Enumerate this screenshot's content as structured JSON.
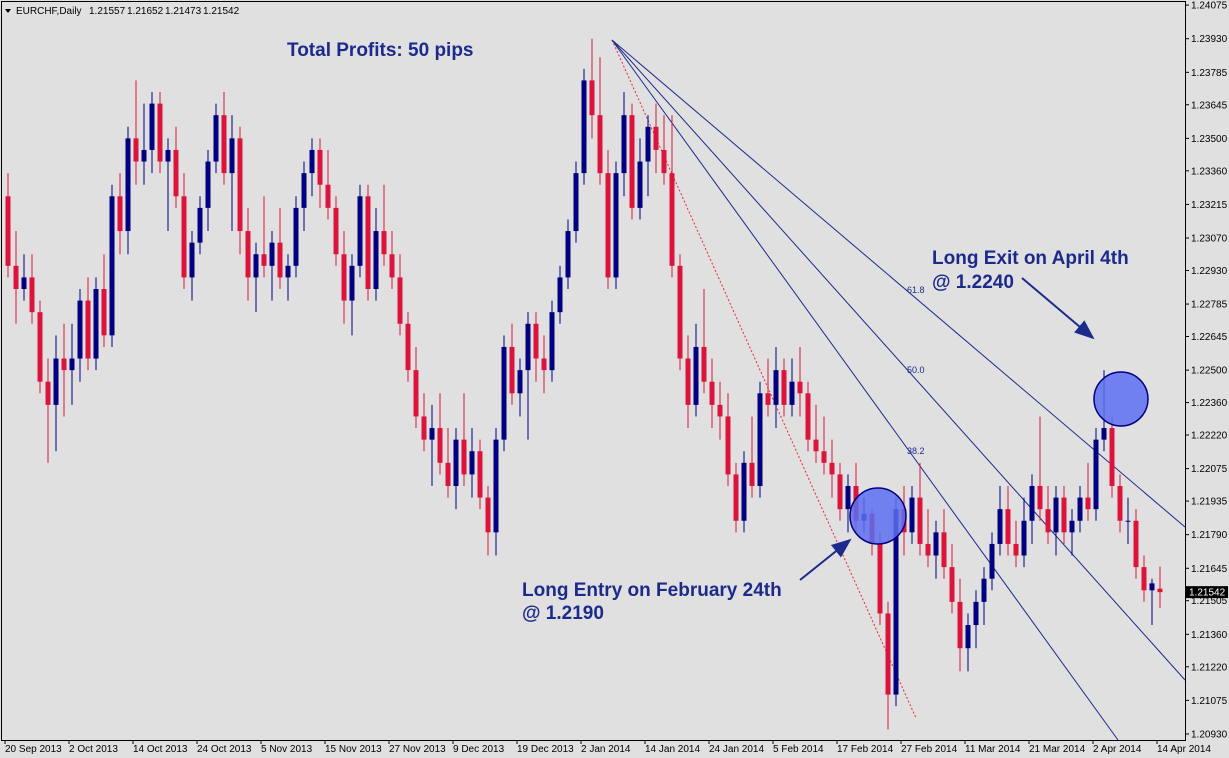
{
  "chart_data": {
    "type": "candlestick",
    "title": "EURCHF,Daily",
    "up_color": "#000080",
    "down_color": "#dc143c",
    "categories": [
      "20 Sep 2013",
      null,
      null,
      null,
      null,
      null,
      null,
      null,
      "2 Oct 2013",
      null,
      null,
      null,
      null,
      null,
      null,
      null,
      "14 Oct 2013",
      null,
      null,
      null,
      null,
      null,
      null,
      null,
      "24 Oct 2013",
      null,
      null,
      null,
      null,
      null,
      null,
      null,
      "5 Nov 2013",
      null,
      null,
      null,
      null,
      null,
      null,
      null,
      "15 Nov 2013",
      null,
      null,
      null,
      null,
      null,
      null,
      null,
      "27 Nov 2013",
      null,
      null,
      null,
      null,
      null,
      null,
      null,
      "9 Dec 2013",
      null,
      null,
      null,
      null,
      null,
      null,
      null,
      "19 Dec 2013",
      null,
      null,
      null,
      null,
      null,
      null,
      null,
      "2 Jan 2014",
      null,
      null,
      null,
      null,
      null,
      null,
      null,
      "14 Jan 2014",
      null,
      null,
      null,
      null,
      null,
      null,
      null,
      "24 Jan 2014",
      null,
      null,
      null,
      null,
      null,
      null,
      null,
      "5 Feb 2014",
      null,
      null,
      null,
      null,
      null,
      null,
      null,
      "17 Feb 2014",
      null,
      null,
      null,
      null,
      null,
      null,
      null,
      "27 Feb 2014",
      null,
      null,
      null,
      null,
      null,
      null,
      null,
      "11 Mar 2014",
      null,
      null,
      null,
      null,
      null,
      null,
      null,
      "21 Mar 2014",
      null,
      null,
      null,
      null,
      null,
      null,
      null,
      "2 Apr 2014",
      null,
      null,
      null,
      null,
      null,
      null,
      null,
      "14 Apr 2014"
    ],
    "open": [
      1.2325,
      1.2295,
      1.2285,
      1.229,
      1.2275,
      1.2245,
      1.2235,
      1.2255,
      1.225,
      1.2255,
      1.228,
      1.2255,
      1.2285,
      1.2265,
      1.2325,
      1.231,
      1.235,
      1.234,
      1.2345,
      1.2365,
      1.234,
      1.2345,
      1.2325,
      1.229,
      1.2305,
      1.232,
      1.234,
      1.236,
      1.2335,
      1.235,
      1.231,
      1.229,
      1.23,
      1.2295,
      1.2305,
      1.229,
      1.2295,
      1.232,
      1.2335,
      1.2345,
      1.233,
      1.232,
      1.23,
      1.228,
      1.2295,
      1.2325,
      1.2285,
      1.231,
      1.23,
      1.229,
      1.227,
      1.225,
      1.223,
      1.222,
      1.2225,
      1.221,
      1.22,
      1.222,
      1.2205,
      1.2215,
      1.2195,
      1.218,
      1.222,
      1.226,
      1.224,
      1.225,
      1.227,
      1.2255,
      1.225,
      1.2275,
      1.229,
      1.231,
      1.2335,
      1.2375,
      1.236,
      1.2335,
      1.229,
      1.2335,
      1.236,
      1.232,
      1.234,
      1.2355,
      1.2345,
      1.2335,
      1.2295,
      1.2255,
      1.2235,
      1.226,
      1.2245,
      1.2235,
      1.223,
      1.2205,
      1.2185,
      1.221,
      1.22,
      1.224,
      1.2235,
      1.225,
      1.2235,
      1.2245,
      1.224,
      1.222,
      1.2215,
      1.221,
      1.2205,
      1.219,
      1.22,
      1.2185,
      1.2188,
      1.2175,
      1.2145,
      1.211,
      1.219,
      1.218,
      1.2195,
      1.2175,
      1.217,
      1.218,
      1.2165,
      1.215,
      1.213,
      1.214,
      1.215,
      1.216,
      1.2175,
      1.219,
      1.2175,
      1.217,
      1.2185,
      1.22,
      1.219,
      1.218,
      1.2195,
      1.218,
      1.2185,
      1.2195,
      1.219,
      1.222,
      1.2225,
      1.22,
      1.2185,
      1.2185,
      1.2165,
      1.2155,
      1.21557
    ],
    "high": [
      1.2335,
      1.231,
      1.23,
      1.23,
      1.228,
      1.2255,
      1.2265,
      1.227,
      1.227,
      1.2285,
      1.229,
      1.229,
      1.23,
      1.233,
      1.2335,
      1.2355,
      1.2375,
      1.2365,
      1.237,
      1.237,
      1.235,
      1.2355,
      1.2335,
      1.231,
      1.2325,
      1.2345,
      1.2365,
      1.237,
      1.236,
      1.2355,
      1.232,
      1.2305,
      1.2325,
      1.231,
      1.232,
      1.23,
      1.2325,
      1.234,
      1.235,
      1.235,
      1.2345,
      1.2325,
      1.231,
      1.23,
      1.233,
      1.233,
      1.232,
      1.233,
      1.231,
      1.23,
      1.2275,
      1.226,
      1.224,
      1.2235,
      1.224,
      1.2225,
      1.2225,
      1.224,
      1.2225,
      1.222,
      1.22,
      1.2225,
      1.2265,
      1.227,
      1.2255,
      1.2275,
      1.2275,
      1.2265,
      1.228,
      1.2295,
      1.2315,
      1.234,
      1.238,
      1.2393,
      1.2385,
      1.2345,
      1.234,
      1.237,
      1.2365,
      1.235,
      1.236,
      1.2365,
      1.236,
      1.236,
      1.23,
      1.2265,
      1.227,
      1.2285,
      1.2255,
      1.2245,
      1.224,
      1.221,
      1.2215,
      1.223,
      1.2245,
      1.2255,
      1.226,
      1.2255,
      1.2255,
      1.226,
      1.2245,
      1.2235,
      1.223,
      1.222,
      1.221,
      1.2205,
      1.221,
      1.2195,
      1.219,
      1.218,
      1.215,
      1.2195,
      1.22,
      1.22,
      1.221,
      1.219,
      1.2185,
      1.219,
      1.2175,
      1.216,
      1.2145,
      1.2155,
      1.2165,
      1.218,
      1.22,
      1.22,
      1.2185,
      1.2195,
      1.2205,
      1.223,
      1.22,
      1.22,
      1.22,
      1.219,
      1.22,
      1.221,
      1.2225,
      1.225,
      1.223,
      1.2205,
      1.2195,
      1.219,
      1.217,
      1.216,
      1.21652
    ],
    "low": [
      1.229,
      1.227,
      1.228,
      1.227,
      1.224,
      1.221,
      1.2215,
      1.223,
      1.2235,
      1.2245,
      1.225,
      1.225,
      1.226,
      1.226,
      1.23,
      1.23,
      1.233,
      1.233,
      1.2335,
      1.2335,
      1.231,
      1.232,
      1.2285,
      1.228,
      1.23,
      1.231,
      1.2335,
      1.233,
      1.231,
      1.23,
      1.228,
      1.2275,
      1.229,
      1.228,
      1.2285,
      1.228,
      1.229,
      1.231,
      1.2325,
      1.232,
      1.2315,
      1.2295,
      1.227,
      1.2265,
      1.229,
      1.228,
      1.228,
      1.2295,
      1.2285,
      1.2265,
      1.2245,
      1.2225,
      1.2215,
      1.22,
      1.2205,
      1.2195,
      1.219,
      1.22,
      1.2195,
      1.219,
      1.217,
      1.217,
      1.2215,
      1.2235,
      1.223,
      1.222,
      1.2245,
      1.224,
      1.2245,
      1.227,
      1.2285,
      1.2305,
      1.233,
      1.235,
      1.233,
      1.2285,
      1.2285,
      1.2325,
      1.2315,
      1.2315,
      1.2325,
      1.2335,
      1.233,
      1.229,
      1.225,
      1.2225,
      1.223,
      1.224,
      1.2225,
      1.222,
      1.22,
      1.218,
      1.218,
      1.2195,
      1.2195,
      1.223,
      1.2225,
      1.223,
      1.223,
      1.223,
      1.2215,
      1.221,
      1.2205,
      1.2195,
      1.2185,
      1.218,
      1.218,
      1.218,
      1.217,
      1.214,
      1.2095,
      1.2105,
      1.217,
      1.2175,
      1.217,
      1.2165,
      1.216,
      1.216,
      1.2145,
      1.212,
      1.212,
      1.213,
      1.214,
      1.2155,
      1.217,
      1.217,
      1.2165,
      1.2165,
      1.2175,
      1.2185,
      1.2175,
      1.217,
      1.2175,
      1.217,
      1.218,
      1.2185,
      1.2185,
      1.2215,
      1.2195,
      1.218,
      1.2175,
      1.216,
      1.215,
      1.214,
      1.21473
    ],
    "close": [
      1.2295,
      1.2285,
      1.229,
      1.2275,
      1.2245,
      1.2235,
      1.2255,
      1.225,
      1.2255,
      1.228,
      1.2255,
      1.2285,
      1.2265,
      1.2325,
      1.231,
      1.235,
      1.234,
      1.2345,
      1.2365,
      1.234,
      1.2345,
      1.2325,
      1.229,
      1.2305,
      1.232,
      1.234,
      1.236,
      1.2335,
      1.235,
      1.231,
      1.229,
      1.23,
      1.2295,
      1.2305,
      1.229,
      1.2295,
      1.232,
      1.2335,
      1.2345,
      1.233,
      1.232,
      1.23,
      1.228,
      1.2295,
      1.2325,
      1.2285,
      1.231,
      1.23,
      1.229,
      1.227,
      1.225,
      1.223,
      1.222,
      1.2225,
      1.221,
      1.22,
      1.222,
      1.2205,
      1.2215,
      1.2195,
      1.218,
      1.222,
      1.226,
      1.224,
      1.225,
      1.227,
      1.2255,
      1.225,
      1.2275,
      1.229,
      1.231,
      1.2335,
      1.2375,
      1.236,
      1.2335,
      1.229,
      1.2335,
      1.236,
      1.232,
      1.234,
      1.2355,
      1.2345,
      1.2335,
      1.2295,
      1.2255,
      1.2235,
      1.226,
      1.2245,
      1.2235,
      1.223,
      1.2205,
      1.2185,
      1.221,
      1.22,
      1.224,
      1.2235,
      1.225,
      1.2235,
      1.2245,
      1.224,
      1.222,
      1.2215,
      1.221,
      1.2205,
      1.219,
      1.22,
      1.2185,
      1.2188,
      1.2175,
      1.2145,
      1.211,
      1.219,
      1.218,
      1.2195,
      1.2175,
      1.217,
      1.218,
      1.2165,
      1.215,
      1.213,
      1.214,
      1.215,
      1.216,
      1.2175,
      1.219,
      1.2175,
      1.217,
      1.2185,
      1.22,
      1.219,
      1.218,
      1.2195,
      1.218,
      1.2185,
      1.2195,
      1.219,
      1.222,
      1.2225,
      1.22,
      1.2185,
      1.2185,
      1.2165,
      1.2155,
      1.2158,
      1.21542
    ],
    "ylim": [
      1.20904,
      1.24097
    ],
    "yticks": [
      {
        "value": 1.24075,
        "label": "1.24075"
      },
      {
        "value": 1.2393,
        "label": "1.23930"
      },
      {
        "value": 1.23785,
        "label": "1.23785"
      },
      {
        "value": 1.23645,
        "label": "1.23645"
      },
      {
        "value": 1.235,
        "label": "1.23500"
      },
      {
        "value": 1.2336,
        "label": "1.23360"
      },
      {
        "value": 1.23215,
        "label": "1.23215"
      },
      {
        "value": 1.2307,
        "label": "1.23070"
      },
      {
        "value": 1.2293,
        "label": "1.22930"
      },
      {
        "value": 1.22785,
        "label": "1.22785"
      },
      {
        "value": 1.22645,
        "label": "1.22645"
      },
      {
        "value": 1.225,
        "label": "1.22500"
      },
      {
        "value": 1.2236,
        "label": "1.22360"
      },
      {
        "value": 1.2222,
        "label": "1.22220"
      },
      {
        "value": 1.22075,
        "label": "1.22075"
      },
      {
        "value": 1.21935,
        "label": "1.21935"
      },
      {
        "value": 1.2179,
        "label": "1.21790"
      },
      {
        "value": 1.21645,
        "label": "1.21645"
      },
      {
        "value": 1.21505,
        "label": "1.21505"
      },
      {
        "value": 1.2136,
        "label": "1.21360"
      },
      {
        "value": 1.2122,
        "label": "1.21220"
      },
      {
        "value": 1.21075,
        "label": "1.21075"
      },
      {
        "value": 1.2093,
        "label": "1.20930"
      }
    ],
    "grid": false,
    "annotations": {
      "profit": "Total Profits: 50 pips",
      "exit": [
        "Long Exit on April 4th",
        "@ 1.2240"
      ],
      "entry": [
        "Long Entry on February 24th",
        "@ 1.2190"
      ],
      "fib_levels": [
        "61.8",
        "50.0",
        "38.2"
      ]
    }
  }
}
